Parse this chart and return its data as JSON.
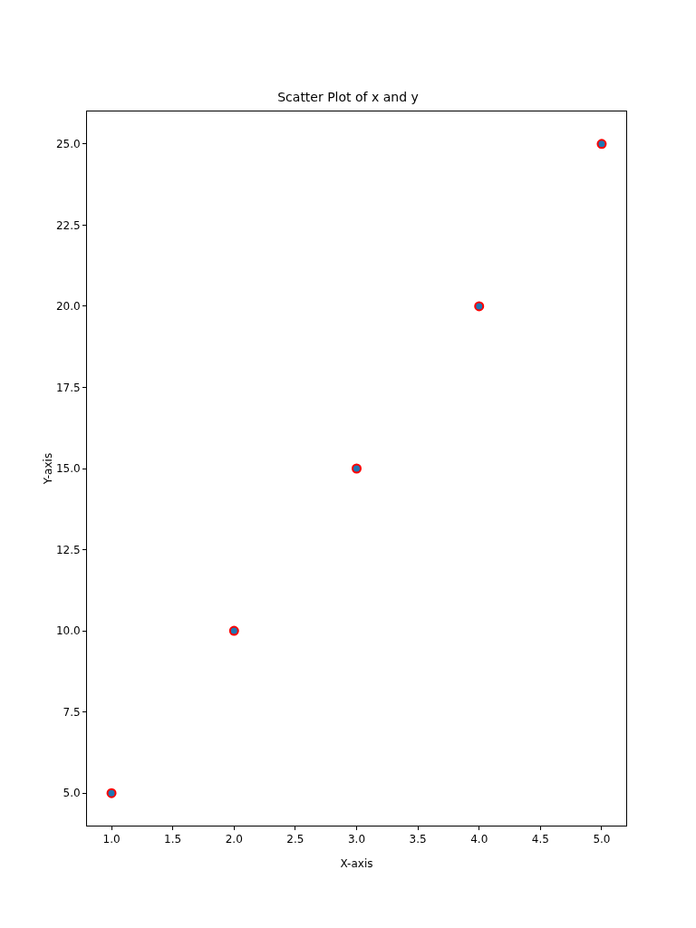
{
  "chart_data": {
    "type": "scatter",
    "title": "Scatter Plot of x and y",
    "xlabel": "X-axis",
    "ylabel": "Y-axis",
    "x": [
      1,
      2,
      3,
      4,
      5
    ],
    "series": [
      {
        "color": "#1f77b4",
        "values": [
          5,
          10,
          15,
          20,
          25
        ]
      }
    ],
    "xlim": [
      0.8,
      5.2
    ],
    "xticks": [
      {
        "value": 1,
        "label": "1.0"
      },
      {
        "value": 1.5,
        "label": "1.5"
      },
      {
        "value": 2,
        "label": "2.0"
      },
      {
        "value": 2.5,
        "label": "2.5"
      },
      {
        "value": 3,
        "label": "3.0"
      },
      {
        "value": 3.5,
        "label": "3.5"
      },
      {
        "value": 4,
        "label": "4.0"
      },
      {
        "value": 4.5,
        "label": "4.5"
      },
      {
        "value": 5,
        "label": "5.0"
      }
    ],
    "ylim": [
      4,
      26
    ],
    "yticks": [
      {
        "value": 5,
        "label": "5.0"
      },
      {
        "value": 7.5,
        "label": "7.5"
      },
      {
        "value": 10,
        "label": "10.0"
      },
      {
        "value": 12.5,
        "label": "12.5"
      },
      {
        "value": 15,
        "label": "15.0"
      },
      {
        "value": 17.5,
        "label": "17.5"
      },
      {
        "value": 20,
        "label": "20.0"
      },
      {
        "value": 22.5,
        "label": "22.5"
      },
      {
        "value": 25,
        "label": "25.0"
      }
    ],
    "grid": false,
    "legend": false,
    "marker": "circle"
  }
}
